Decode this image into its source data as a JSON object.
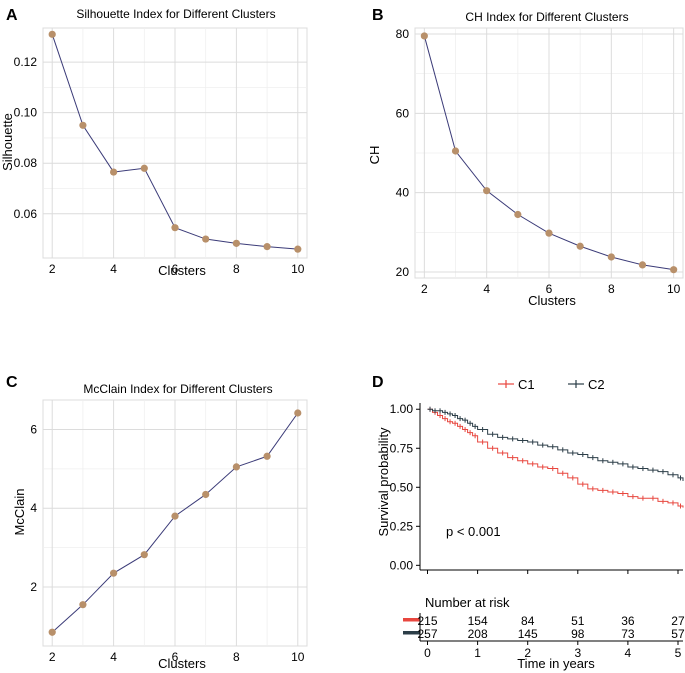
{
  "colors": {
    "line": "#3b3b78",
    "marker": "#b8906a",
    "grid": "#dcdcdc",
    "c1": "#e8473f",
    "c2": "#2c3e48"
  },
  "chart_data": [
    {
      "panel": "A",
      "type": "line",
      "title": "Silhouette Index for Different Clusters",
      "xlabel": "Clusters",
      "ylabel": "Silhouette",
      "x": [
        2,
        3,
        4,
        5,
        6,
        7,
        8,
        9,
        10
      ],
      "values": [
        0.131,
        0.095,
        0.0765,
        0.078,
        0.0545,
        0.05,
        0.0483,
        0.047,
        0.046
      ],
      "xlim": [
        1.7,
        10.3
      ],
      "ylim": [
        0.0425,
        0.1335
      ],
      "xticks": [
        "2",
        "4",
        "6",
        "8",
        "10"
      ],
      "yticks": [
        "0.06",
        "0.08",
        "0.10",
        "0.12"
      ],
      "grid": true
    },
    {
      "panel": "B",
      "type": "line",
      "title": "CH Index for Different Clusters",
      "xlabel": "Clusters",
      "ylabel": "CH",
      "x": [
        2,
        3,
        4,
        5,
        6,
        7,
        8,
        9,
        10
      ],
      "values": [
        79.5,
        50.5,
        40.5,
        34.5,
        29.8,
        26.5,
        23.8,
        21.8,
        20.6
      ],
      "xlim": [
        1.7,
        10.3
      ],
      "ylim": [
        18.5,
        81.5
      ],
      "xticks": [
        "2",
        "4",
        "6",
        "8",
        "10"
      ],
      "yticks": [
        "20",
        "40",
        "60",
        "80"
      ],
      "grid": true
    },
    {
      "panel": "C",
      "type": "line",
      "title": "McClain Index for Different Clusters",
      "xlabel": "Clusters",
      "ylabel": "McClain",
      "x": [
        2,
        3,
        4,
        5,
        6,
        7,
        8,
        9,
        10
      ],
      "values": [
        0.85,
        1.55,
        2.35,
        2.82,
        3.8,
        4.35,
        5.05,
        5.32,
        6.42
      ],
      "xlim": [
        1.7,
        10.3
      ],
      "ylim": [
        0.5,
        6.75
      ],
      "xticks": [
        "2",
        "4",
        "6",
        "8",
        "10"
      ],
      "yticks": [
        "2",
        "4",
        "6"
      ],
      "grid": true
    },
    {
      "panel": "D",
      "type": "line",
      "subtype": "kaplan-meier",
      "xlabel": "Time in years",
      "ylabel": "Survival probability",
      "legend": [
        "C1",
        "C2"
      ],
      "xlim": [
        -0.15,
        5.1
      ],
      "ylim": [
        -0.03,
        1.04
      ],
      "xticks": [
        "0",
        "1",
        "2",
        "3",
        "4",
        "5"
      ],
      "yticks": [
        "0.00",
        "0.25",
        "0.50",
        "0.75",
        "1.00"
      ],
      "annotation": "p < 0.001",
      "series": [
        {
          "name": "C1",
          "x": [
            0,
            0.1,
            0.2,
            0.3,
            0.4,
            0.5,
            0.6,
            0.7,
            0.8,
            0.9,
            1.0,
            1.2,
            1.4,
            1.6,
            1.8,
            2.0,
            2.2,
            2.4,
            2.6,
            2.8,
            3.0,
            3.2,
            3.4,
            3.6,
            3.8,
            4.0,
            4.2,
            4.4,
            4.6,
            4.8,
            5.0,
            5.1
          ],
          "values": [
            1.0,
            0.98,
            0.96,
            0.94,
            0.92,
            0.91,
            0.89,
            0.87,
            0.85,
            0.83,
            0.79,
            0.75,
            0.72,
            0.69,
            0.67,
            0.65,
            0.63,
            0.62,
            0.59,
            0.56,
            0.52,
            0.49,
            0.48,
            0.47,
            0.46,
            0.44,
            0.43,
            0.43,
            0.41,
            0.4,
            0.38,
            0.37
          ]
        },
        {
          "name": "C2",
          "x": [
            0,
            0.1,
            0.2,
            0.3,
            0.4,
            0.5,
            0.6,
            0.7,
            0.8,
            0.9,
            1.0,
            1.2,
            1.4,
            1.6,
            1.8,
            2.0,
            2.2,
            2.4,
            2.6,
            2.8,
            3.0,
            3.2,
            3.4,
            3.6,
            3.8,
            4.0,
            4.2,
            4.4,
            4.6,
            4.8,
            5.0,
            5.1
          ],
          "values": [
            1.0,
            0.99,
            0.99,
            0.98,
            0.97,
            0.96,
            0.94,
            0.93,
            0.91,
            0.89,
            0.87,
            0.84,
            0.82,
            0.81,
            0.8,
            0.79,
            0.77,
            0.76,
            0.74,
            0.72,
            0.71,
            0.69,
            0.67,
            0.66,
            0.65,
            0.63,
            0.62,
            0.61,
            0.6,
            0.58,
            0.56,
            0.54
          ]
        }
      ],
      "risk_table": {
        "title": "Number at risk",
        "times": [
          "0",
          "1",
          "2",
          "3",
          "4",
          "5"
        ],
        "rows": [
          {
            "name": "C1",
            "values": [
              "215",
              "154",
              "84",
              "51",
              "36",
              "27"
            ]
          },
          {
            "name": "C2",
            "values": [
              "257",
              "208",
              "145",
              "98",
              "73",
              "57"
            ]
          }
        ]
      }
    }
  ]
}
